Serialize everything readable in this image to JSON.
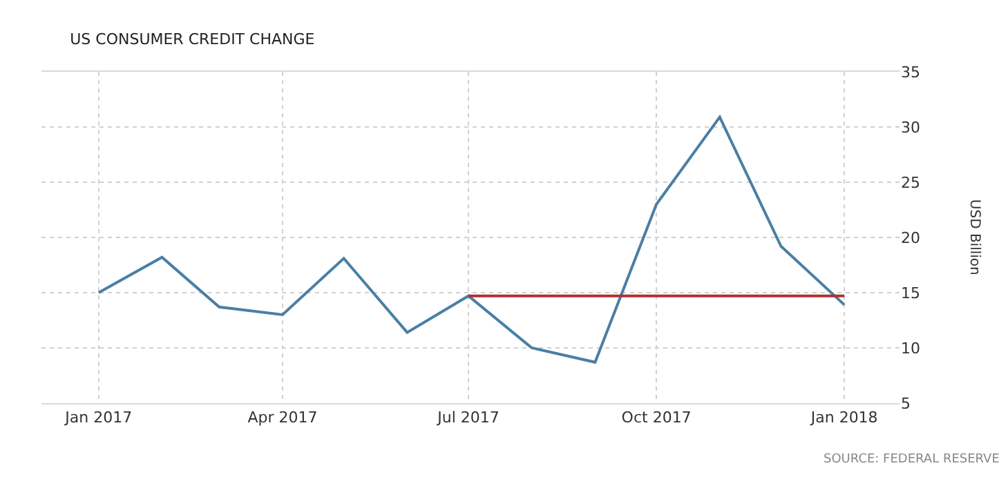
{
  "chart_data": {
    "type": "line",
    "title": "US CONSUMER CREDIT CHANGE",
    "ylabel": "USD Billion",
    "x": [
      "2017-01",
      "2017-02",
      "2017-03",
      "2017-04",
      "2017-05",
      "2017-06",
      "2017-07",
      "2017-08",
      "2017-09",
      "2017-10",
      "2017-11",
      "2017-12",
      "2018-01"
    ],
    "series": [
      {
        "color": "#4a7fa5",
        "values": [
          15.0,
          18.2,
          13.7,
          13.0,
          18.1,
          11.4,
          14.7,
          10.0,
          8.7,
          23.0,
          30.9,
          19.2,
          13.9
        ]
      },
      {
        "type": "line",
        "color": "#b03030",
        "x": [
          "2017-07",
          "2018-01"
        ],
        "values": [
          14.7,
          14.7
        ]
      }
    ],
    "xlim": [
      "2016-12-04",
      "2018-01-28"
    ],
    "xticks": [
      {
        "value": "2017-01",
        "label": "Jan 2017"
      },
      {
        "value": "2017-04",
        "label": "Apr 2017"
      },
      {
        "value": "2017-07",
        "label": "Jul 2017"
      },
      {
        "value": "2017-10",
        "label": "Oct 2017"
      },
      {
        "value": "2018-01",
        "label": "Jan 2018"
      }
    ],
    "ylim": [
      5,
      35
    ],
    "yticks": [
      5,
      10,
      15,
      20,
      25,
      30,
      35
    ],
    "grid": true,
    "marker": "none",
    "line_style": "solid",
    "annotations": [
      "SOURCE: FEDERAL RESERVE"
    ]
  }
}
